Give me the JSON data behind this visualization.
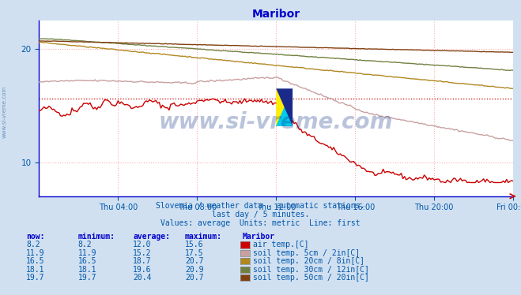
{
  "title": "Maribor",
  "title_color": "#0000cc",
  "bg_color": "#d0e0f0",
  "plot_bg_color": "#ffffff",
  "grid_color": "#ffaaaa",
  "x_axis_color": "#0000cc",
  "tick_label_color": "#0055aa",
  "xlim": [
    0,
    288
  ],
  "ylim": [
    7,
    22.5
  ],
  "yticks": [
    10,
    20
  ],
  "xtick_labels": [
    "Thu 04:00",
    "Thu 08:00",
    "Thu 12:00",
    "Thu 16:00",
    "Thu 20:00",
    "Fri 00:00"
  ],
  "xtick_positions": [
    48,
    96,
    144,
    192,
    240,
    288
  ],
  "subtitle1": "Slovenia / weather data - automatic stations.",
  "subtitle2": "last day / 5 minutes.",
  "subtitle3": "Values: average  Units: metric  Line: first",
  "subtitle_color": "#0055aa",
  "watermark": "www.si-vreme.com",
  "watermark_color": "#1a3a8a",
  "legend_header": [
    "now:",
    "minimum:",
    "average:",
    "maximum:",
    "Maribor"
  ],
  "legend_rows": [
    {
      "now": "8.2",
      "min": "8.2",
      "avg": "12.0",
      "max": "15.6",
      "color": "#cc0000",
      "label": "air temp.[C]"
    },
    {
      "now": "11.9",
      "min": "11.9",
      "avg": "15.2",
      "max": "17.5",
      "color": "#c8a0a0",
      "label": "soil temp. 5cm / 2in[C]"
    },
    {
      "now": "16.5",
      "min": "16.5",
      "avg": "18.7",
      "max": "20.7",
      "color": "#b08820",
      "label": "soil temp. 20cm / 8in[C]"
    },
    {
      "now": "18.1",
      "min": "18.1",
      "avg": "19.6",
      "max": "20.9",
      "color": "#708040",
      "label": "soil temp. 30cm / 12in[C]"
    },
    {
      "now": "19.7",
      "min": "19.7",
      "avg": "20.4",
      "max": "20.7",
      "color": "#804010",
      "label": "soil temp. 50cm / 20in[C]"
    }
  ],
  "line_colors": [
    "#cc0000",
    "#c8a0a0",
    "#b08820",
    "#708040",
    "#804010"
  ],
  "line_widths": [
    1.0,
    1.0,
    1.0,
    1.0,
    1.0
  ],
  "dotted_line_value": 15.6,
  "n_points": 289
}
